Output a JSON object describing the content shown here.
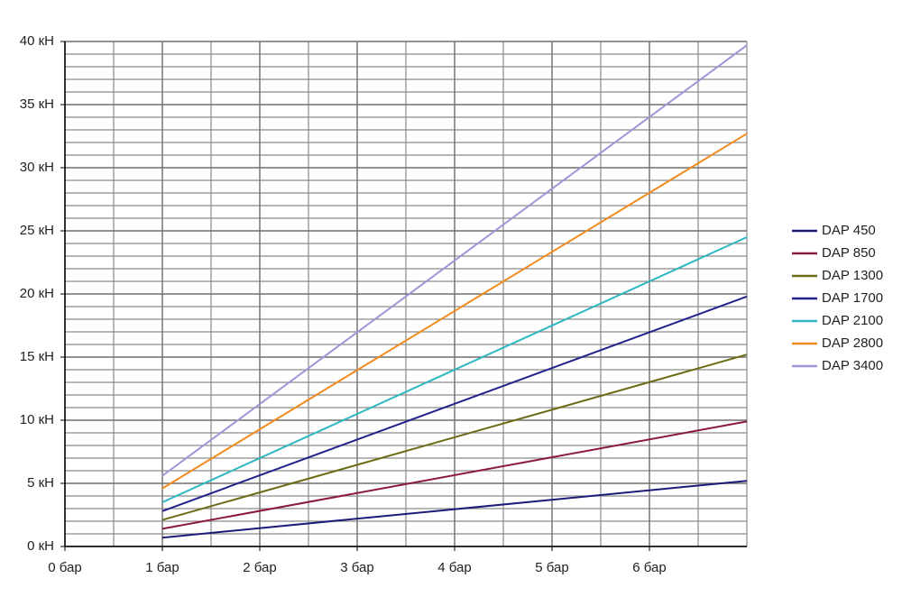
{
  "chart_data": {
    "type": "line",
    "x": [
      1,
      7
    ],
    "series": [
      {
        "name": "DAP 450",
        "color": "#1c1c78",
        "values": [
          0.7,
          5.2
        ]
      },
      {
        "name": "DAP 850",
        "color": "#8a1a3c",
        "values": [
          1.4,
          9.9
        ]
      },
      {
        "name": "DAP 1300",
        "color": "#6b6b16",
        "values": [
          2.1,
          15.2
        ]
      },
      {
        "name": "DAP 1700",
        "color": "#22228c",
        "values": [
          2.8,
          19.8
        ]
      },
      {
        "name": "DAP 2100",
        "color": "#2eb6c2",
        "values": [
          3.5,
          24.5
        ]
      },
      {
        "name": "DAP 2800",
        "color": "#f28b1e",
        "values": [
          4.6,
          32.7
        ]
      },
      {
        "name": "DAP 3400",
        "color": "#9c98d8",
        "values": [
          5.6,
          39.7
        ]
      }
    ],
    "xlim": [
      0,
      7
    ],
    "xticks": [
      {
        "value": 0,
        "label": "0 бар"
      },
      {
        "value": 1,
        "label": "1 бар"
      },
      {
        "value": 2,
        "label": "2 бар"
      },
      {
        "value": 3,
        "label": "3 бар"
      },
      {
        "value": 4,
        "label": "4 бар"
      },
      {
        "value": 5,
        "label": "5 бар"
      },
      {
        "value": 6,
        "label": "6 бар"
      }
    ],
    "ylim": [
      0,
      40
    ],
    "yticks": [
      {
        "value": 0,
        "label": "0 кН"
      },
      {
        "value": 5,
        "label": "5 кН"
      },
      {
        "value": 10,
        "label": "10 кН"
      },
      {
        "value": 15,
        "label": "15 кН"
      },
      {
        "value": 20,
        "label": "20 кН"
      },
      {
        "value": 25,
        "label": "25 кН"
      },
      {
        "value": 30,
        "label": "30 кН"
      },
      {
        "value": 35,
        "label": "35 кН"
      },
      {
        "value": 40,
        "label": "40 кН"
      }
    ],
    "grid": true,
    "x_minor_per_tick": 2,
    "y_minor_per_tick": 5,
    "legend": "right"
  }
}
